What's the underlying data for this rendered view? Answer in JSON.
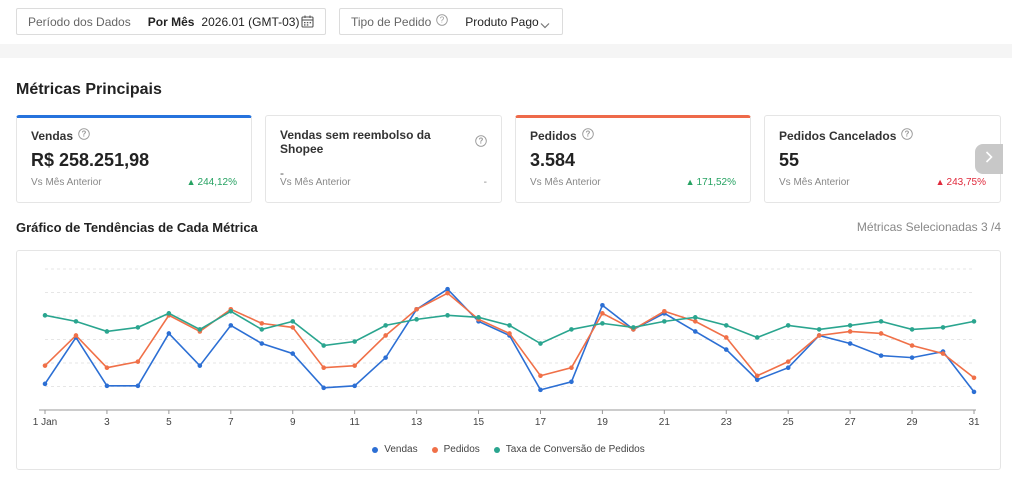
{
  "filters": {
    "period": {
      "label": "Período dos Dados",
      "mode": "Por Mês",
      "value": "2026.01 (GMT-03)"
    },
    "order_type": {
      "label": "Tipo de Pedido",
      "value": "Produto Pago"
    }
  },
  "section_title": "Métricas Principais",
  "cards": [
    {
      "title": "Vendas",
      "value": "R$ 258.251,98",
      "vs_label": "Vs Mês Anterior",
      "change": "244,12%",
      "direction": "up",
      "accent": "#2673dd"
    },
    {
      "title": "Vendas sem reembolso da Shopee",
      "value": "-",
      "vs_label": "Vs Mês Anterior",
      "change": "-",
      "direction": "none"
    },
    {
      "title": "Pedidos",
      "value": "3.584",
      "vs_label": "Vs Mês Anterior",
      "change": "171,52%",
      "direction": "up",
      "accent": "#ee6a4a"
    },
    {
      "title": "Pedidos Cancelados",
      "value": "55",
      "vs_label": "Vs Mês Anterior",
      "change": "243,75%",
      "direction": "down"
    }
  ],
  "trend": {
    "title": "Gráfico de Tendências de Cada Métrica",
    "selected_label": "Métricas Selecionadas 3 /4"
  },
  "chart_data": {
    "type": "line",
    "x": [
      1,
      2,
      3,
      4,
      5,
      6,
      7,
      8,
      9,
      10,
      11,
      12,
      13,
      14,
      15,
      16,
      17,
      18,
      19,
      20,
      21,
      22,
      23,
      24,
      25,
      26,
      27,
      28,
      29,
      30,
      31
    ],
    "x_tick_labels": [
      "1 Jan",
      "3",
      "5",
      "7",
      "9",
      "11",
      "13",
      "15",
      "17",
      "19",
      "21",
      "23",
      "25",
      "27",
      "29",
      "31"
    ],
    "x_tick_values": [
      1,
      3,
      5,
      7,
      9,
      11,
      13,
      15,
      17,
      19,
      21,
      23,
      25,
      27,
      29,
      31
    ],
    "ylim": [
      0,
      7
    ],
    "grid": true,
    "legend_position": "bottom",
    "series": [
      {
        "name": "Vendas",
        "color": "#2c6fd4",
        "values": [
          1.3,
          3.6,
          1.2,
          1.2,
          3.8,
          2.2,
          4.2,
          3.3,
          2.8,
          1.1,
          1.2,
          2.6,
          5.0,
          6.0,
          4.4,
          3.7,
          1.0,
          1.4,
          5.2,
          4.0,
          4.8,
          3.9,
          3.0,
          1.5,
          2.1,
          3.7,
          3.3,
          2.7,
          2.6,
          2.9,
          0.9
        ]
      },
      {
        "name": "Pedidos",
        "color": "#f07048",
        "values": [
          2.2,
          3.7,
          2.1,
          2.4,
          4.7,
          3.9,
          5.0,
          4.3,
          4.1,
          2.1,
          2.2,
          3.7,
          5.0,
          5.8,
          4.5,
          3.8,
          1.7,
          2.1,
          4.8,
          4.0,
          4.9,
          4.4,
          3.6,
          1.7,
          2.4,
          3.7,
          3.9,
          3.8,
          3.2,
          2.8,
          1.6
        ]
      },
      {
        "name": "Taxa de Conversão de Pedidos",
        "color": "#2aa58f",
        "values": [
          4.7,
          4.4,
          3.9,
          4.1,
          4.8,
          4.0,
          4.9,
          4.0,
          4.4,
          3.2,
          3.4,
          4.2,
          4.5,
          4.7,
          4.6,
          4.2,
          3.3,
          4.0,
          4.3,
          4.1,
          4.4,
          4.6,
          4.2,
          3.6,
          4.2,
          4.0,
          4.2,
          4.4,
          4.0,
          4.1,
          4.4
        ]
      }
    ]
  }
}
